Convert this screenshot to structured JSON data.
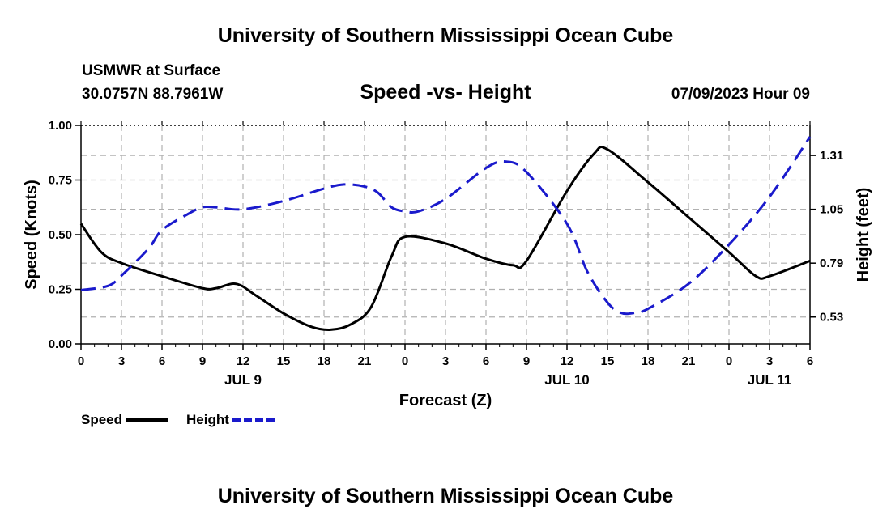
{
  "header": {
    "title": "University of Southern Mississippi Ocean Cube",
    "station": "USMWR at Surface",
    "coords": "30.0757N  88.7961W",
    "subtitle": "Speed -vs- Height",
    "datetime": "07/09/2023 Hour 09"
  },
  "footer": {
    "title": "University of Southern Mississippi Ocean Cube"
  },
  "colors": {
    "speed": "#000000",
    "height": "#1a1acc",
    "grid": "#b0b0b0"
  },
  "chart_data": {
    "type": "line",
    "title": "Speed -vs- Height",
    "xlabel": "Forecast (Z)",
    "ylabel": "Speed (Knots)",
    "y2label": "Height (feet)",
    "xlim": [
      0,
      54
    ],
    "ylim": [
      0,
      1
    ],
    "y2lim": [
      0.4,
      1.455
    ],
    "x_ticks": [
      0,
      3,
      6,
      9,
      12,
      15,
      18,
      21,
      24,
      27,
      30,
      33,
      36,
      39,
      42,
      45,
      48,
      51,
      54
    ],
    "x_tick_labels": [
      "0",
      "3",
      "6",
      "9",
      "12",
      "15",
      "18",
      "21",
      "0",
      "3",
      "6",
      "9",
      "12",
      "15",
      "18",
      "21",
      "0",
      "3",
      "6"
    ],
    "day_labels": [
      {
        "x": 12,
        "label": "JUL 9"
      },
      {
        "x": 36,
        "label": "JUL 10"
      },
      {
        "x": 51,
        "label": "JUL 11"
      }
    ],
    "y_ticks": [
      0,
      0.25,
      0.5,
      0.75,
      1
    ],
    "y_tick_labels": [
      "0.00",
      "0.25",
      "0.50",
      "0.75",
      "1.00"
    ],
    "y2_ticks": [
      0.53,
      0.79,
      1.05,
      1.31
    ],
    "y2_tick_labels": [
      "0.53",
      "0.79",
      "1.05",
      "1.31"
    ],
    "legend": [
      "Speed",
      "Height"
    ],
    "legend_position": "bottom-left",
    "series": [
      {
        "name": "Speed",
        "axis": "left",
        "style": "solid",
        "x": [
          0,
          1.5,
          3,
          6,
          9,
          10,
          11.5,
          13,
          15,
          17,
          18.5,
          20,
          21.5,
          23,
          24,
          27,
          30,
          32,
          33,
          36,
          38,
          39,
          42,
          45,
          48,
          50,
          51,
          54
        ],
        "values": [
          0.55,
          0.42,
          0.37,
          0.31,
          0.255,
          0.255,
          0.275,
          0.22,
          0.14,
          0.08,
          0.065,
          0.09,
          0.17,
          0.4,
          0.49,
          0.46,
          0.39,
          0.36,
          0.38,
          0.7,
          0.87,
          0.89,
          0.74,
          0.58,
          0.42,
          0.31,
          0.31,
          0.38
        ]
      },
      {
        "name": "Height",
        "axis": "right",
        "style": "dashed",
        "x": [
          0,
          2,
          3,
          5,
          6,
          8,
          9,
          10,
          12,
          15,
          18,
          19.5,
          21,
          22,
          23,
          24,
          25,
          27,
          30,
          31.5,
          33,
          36,
          37.5,
          39,
          40,
          41,
          42,
          45,
          48,
          51,
          54
        ],
        "values": [
          0.66,
          0.68,
          0.73,
          0.86,
          0.95,
          1.03,
          1.06,
          1.06,
          1.05,
          1.09,
          1.15,
          1.17,
          1.16,
          1.13,
          1.06,
          1.04,
          1.04,
          1.1,
          1.25,
          1.28,
          1.23,
          0.98,
          0.75,
          0.6,
          0.55,
          0.55,
          0.57,
          0.69,
          0.88,
          1.11,
          1.4
        ]
      }
    ]
  }
}
